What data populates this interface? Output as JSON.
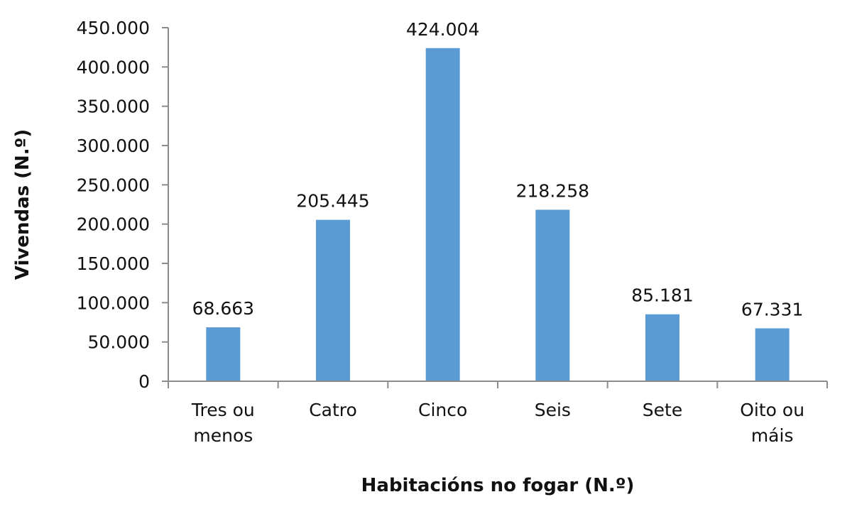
{
  "chart_data": {
    "type": "bar",
    "title": "",
    "xlabel": "Habitacións no fogar (N.º)",
    "ylabel": "Vivendas (N.º)",
    "categories": [
      [
        "Tres ou",
        "menos"
      ],
      [
        "Catro"
      ],
      [
        "Cinco"
      ],
      [
        "Seis"
      ],
      [
        "Sete"
      ],
      [
        "Oito ou",
        "máis"
      ]
    ],
    "values": [
      68663,
      205445,
      424004,
      218258,
      85181,
      67331
    ],
    "data_labels": [
      "68.663",
      "205.445",
      "424.004",
      "218.258",
      "85.181",
      "67.331"
    ],
    "ylim": [
      0,
      450000
    ],
    "yticks": [
      0,
      50000,
      100000,
      150000,
      200000,
      250000,
      300000,
      350000,
      400000,
      450000
    ],
    "ytick_labels": [
      "0",
      "50.000",
      "100.000",
      "150.000",
      "200.000",
      "250.000",
      "300.000",
      "350.000",
      "400.000",
      "450.000"
    ],
    "grid": false,
    "legend": "none",
    "bar_color": "#5b9bd5",
    "axis_color": "#8c8c8c"
  }
}
